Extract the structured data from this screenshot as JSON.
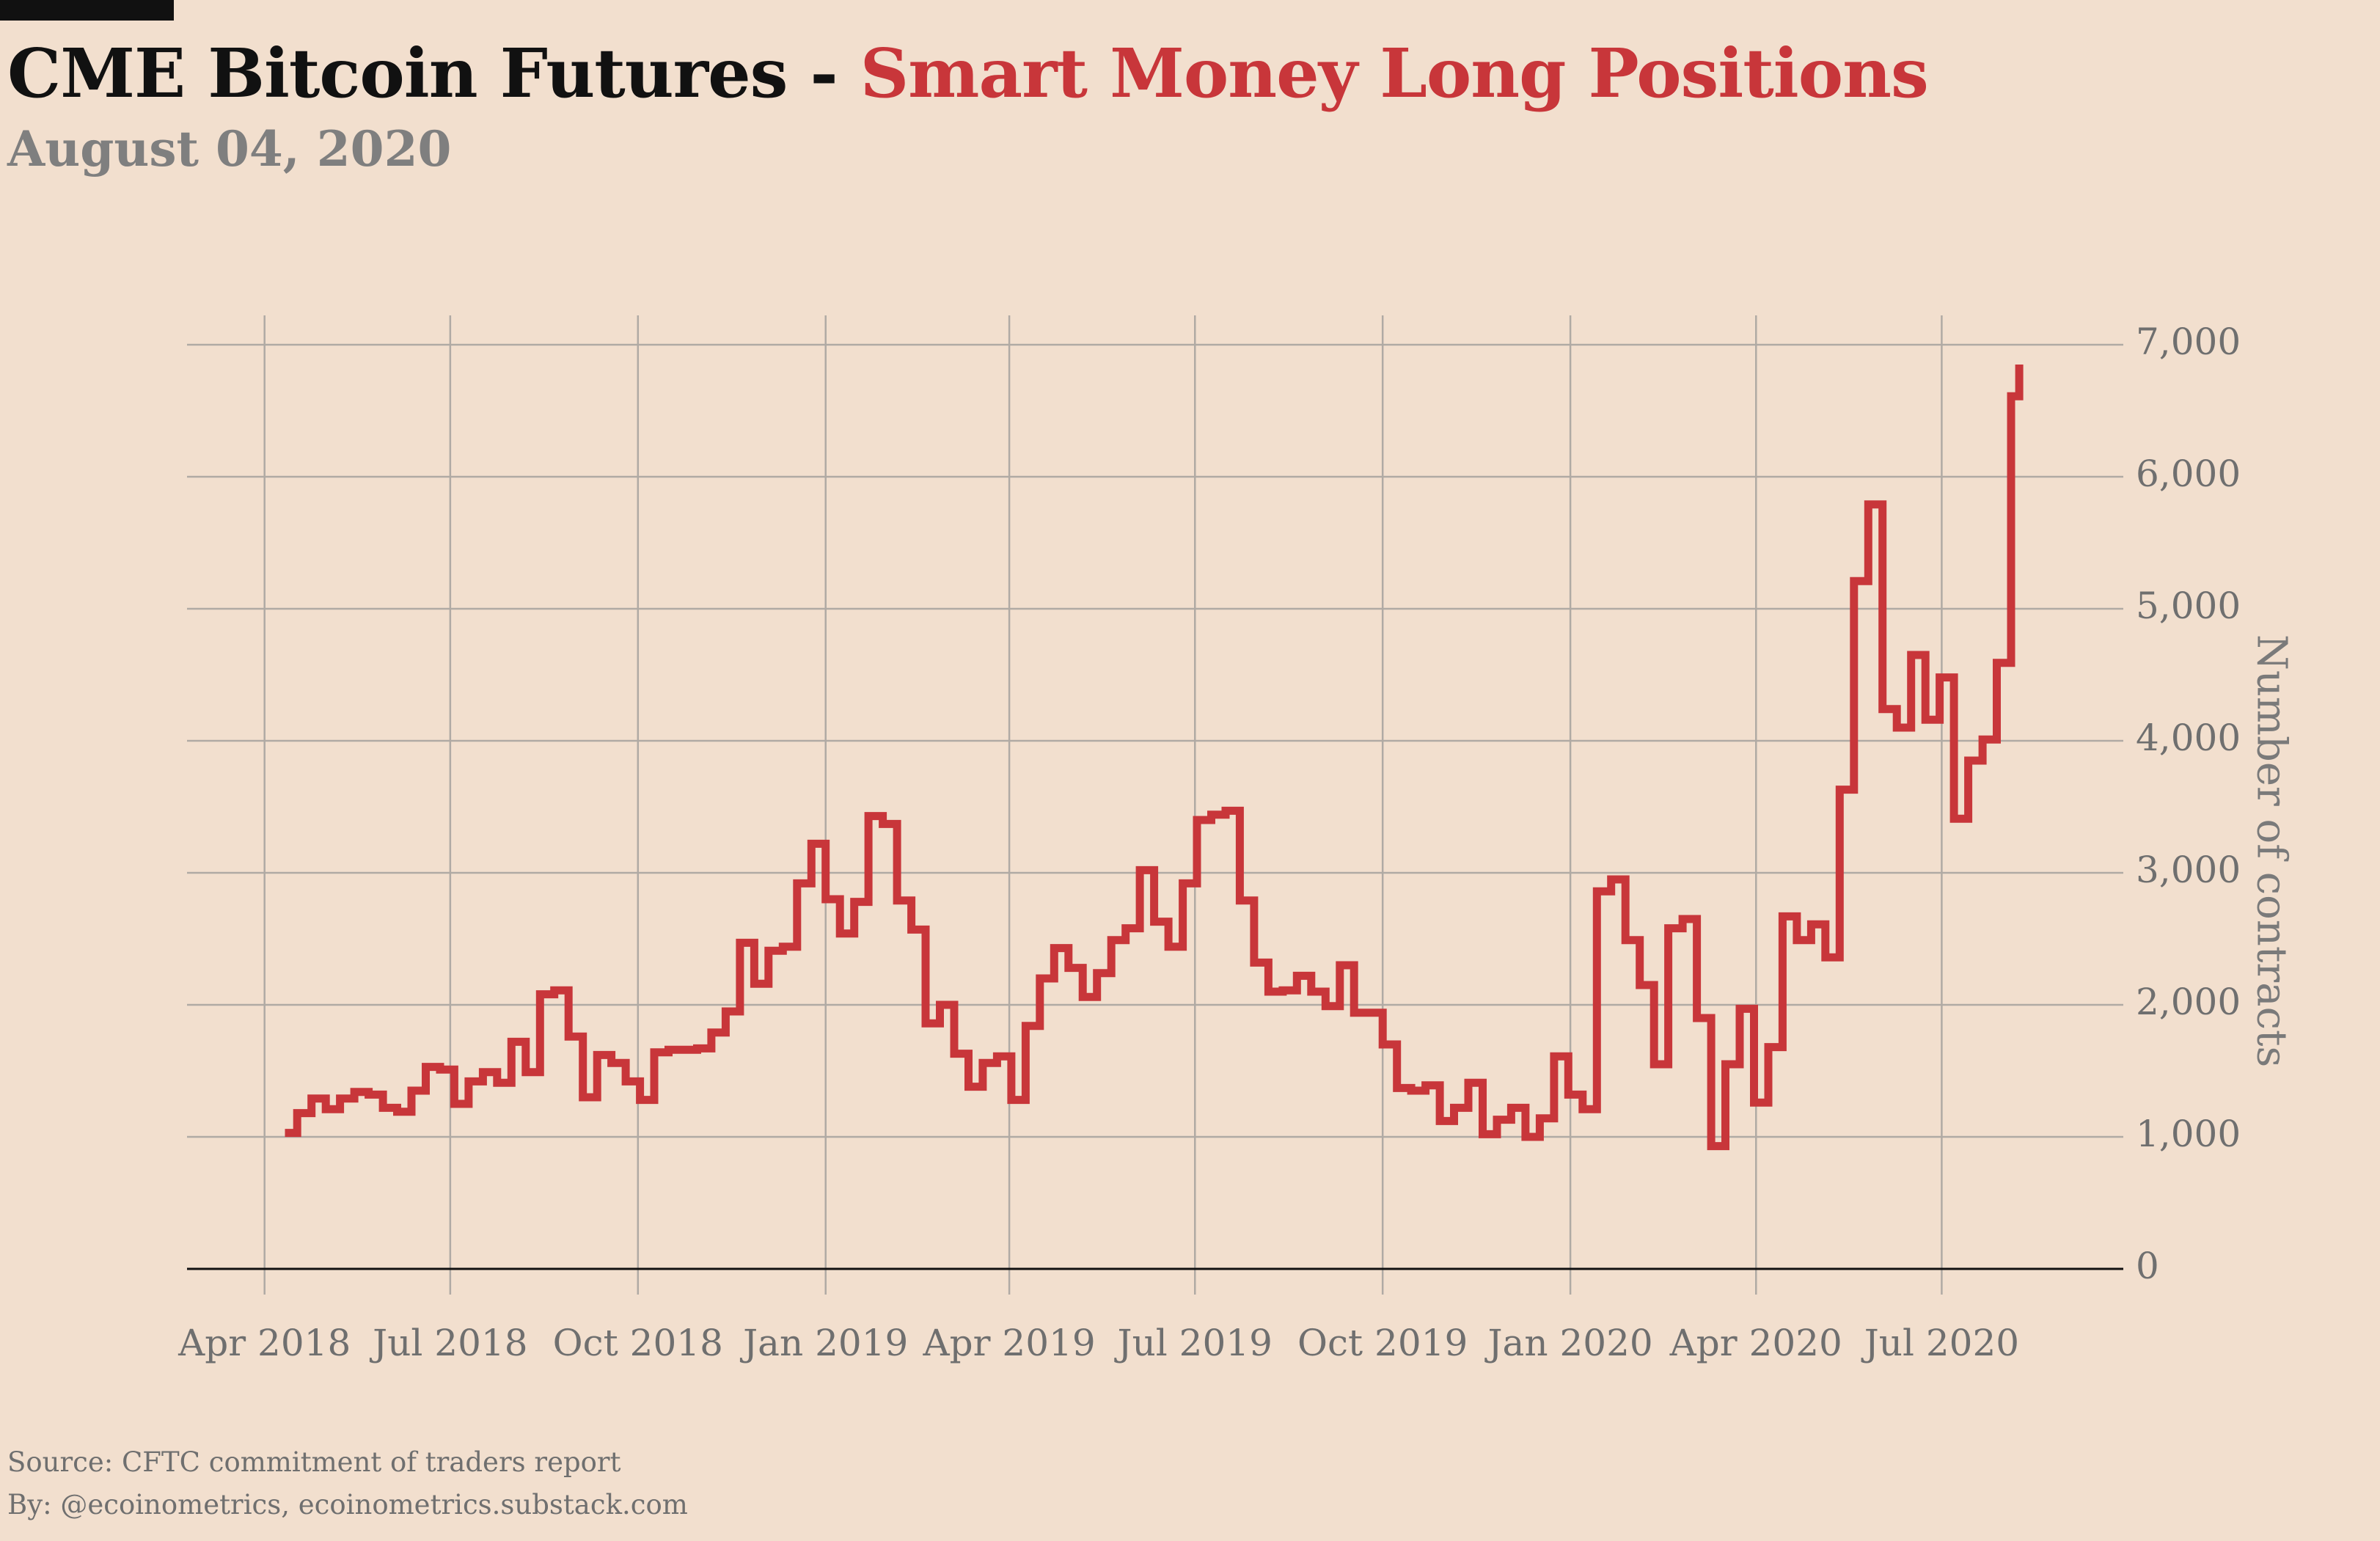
{
  "title": {
    "part1": "CME Bitcoin Futures - ",
    "part2": "Smart Money Long Positions"
  },
  "subtitle": "August 04, 2020",
  "footer": {
    "source": "Source: CFTC commitment of traders report",
    "by": "By: @ecoinometrics, ecoinometrics.substack.com"
  },
  "colors": {
    "background": "#f2dfce",
    "line": "#c8363a",
    "grid": "#b0aaa4",
    "zero_line": "#111111",
    "muted_text": "#7f7f7f"
  },
  "chart_data": {
    "type": "line",
    "step": true,
    "title": "CME Bitcoin Futures - Smart Money Long Positions",
    "subtitle": "August 04, 2020",
    "xlabel": "",
    "ylabel": "Number of contracts",
    "y_axis_side": "right",
    "ylim": [
      0,
      7000
    ],
    "xlim": [
      "2018-02-22",
      "2020-09-28"
    ],
    "grid": true,
    "legend": "none",
    "x_ticks": [
      {
        "date": "2018-04-01",
        "label": "Apr 2018"
      },
      {
        "date": "2018-07-01",
        "label": "Jul 2018"
      },
      {
        "date": "2018-10-01",
        "label": "Oct 2018"
      },
      {
        "date": "2019-01-01",
        "label": "Jan 2019"
      },
      {
        "date": "2019-04-01",
        "label": "Apr 2019"
      },
      {
        "date": "2019-07-01",
        "label": "Jul 2019"
      },
      {
        "date": "2019-10-01",
        "label": "Oct 2019"
      },
      {
        "date": "2020-01-01",
        "label": "Jan 2020"
      },
      {
        "date": "2020-04-01",
        "label": "Apr 2020"
      },
      {
        "date": "2020-07-01",
        "label": "Jul 2020"
      }
    ],
    "y_ticks": [
      {
        "value": 0,
        "label": "0"
      },
      {
        "value": 1000,
        "label": "1,000"
      },
      {
        "value": 2000,
        "label": "2,000"
      },
      {
        "value": 3000,
        "label": "3,000"
      },
      {
        "value": 4000,
        "label": "4,000"
      },
      {
        "value": 5000,
        "label": "5,000"
      },
      {
        "value": 6000,
        "label": "6,000"
      },
      {
        "value": 7000,
        "label": "7,000"
      }
    ],
    "series": [
      {
        "color": "#c8363a",
        "points": [
          [
            "2018-04-11",
            1030
          ],
          [
            "2018-04-17",
            1180
          ],
          [
            "2018-04-24",
            1290
          ],
          [
            "2018-05-01",
            1210
          ],
          [
            "2018-05-08",
            1290
          ],
          [
            "2018-05-15",
            1340
          ],
          [
            "2018-05-22",
            1320
          ],
          [
            "2018-05-29",
            1220
          ],
          [
            "2018-06-05",
            1190
          ],
          [
            "2018-06-12",
            1350
          ],
          [
            "2018-06-19",
            1530
          ],
          [
            "2018-06-26",
            1510
          ],
          [
            "2018-07-03",
            1250
          ],
          [
            "2018-07-10",
            1420
          ],
          [
            "2018-07-17",
            1490
          ],
          [
            "2018-07-24",
            1410
          ],
          [
            "2018-07-31",
            1720
          ],
          [
            "2018-08-07",
            1490
          ],
          [
            "2018-08-14",
            2080
          ],
          [
            "2018-08-21",
            2110
          ],
          [
            "2018-08-28",
            1760
          ],
          [
            "2018-09-04",
            1300
          ],
          [
            "2018-09-11",
            1620
          ],
          [
            "2018-09-18",
            1560
          ],
          [
            "2018-09-25",
            1420
          ],
          [
            "2018-10-02",
            1280
          ],
          [
            "2018-10-09",
            1640
          ],
          [
            "2018-10-16",
            1660
          ],
          [
            "2018-10-23",
            1660
          ],
          [
            "2018-10-30",
            1670
          ],
          [
            "2018-11-06",
            1790
          ],
          [
            "2018-11-13",
            1950
          ],
          [
            "2018-11-20",
            2470
          ],
          [
            "2018-11-27",
            2160
          ],
          [
            "2018-12-04",
            2410
          ],
          [
            "2018-12-11",
            2440
          ],
          [
            "2018-12-18",
            2920
          ],
          [
            "2018-12-25",
            3220
          ],
          [
            "2019-01-01",
            2800
          ],
          [
            "2019-01-08",
            2540
          ],
          [
            "2019-01-15",
            2780
          ],
          [
            "2019-01-22",
            3430
          ],
          [
            "2019-01-29",
            3370
          ],
          [
            "2019-02-05",
            2790
          ],
          [
            "2019-02-12",
            2570
          ],
          [
            "2019-02-19",
            1860
          ],
          [
            "2019-02-26",
            2000
          ],
          [
            "2019-03-05",
            1630
          ],
          [
            "2019-03-12",
            1380
          ],
          [
            "2019-03-19",
            1560
          ],
          [
            "2019-03-26",
            1610
          ],
          [
            "2019-04-02",
            1280
          ],
          [
            "2019-04-09",
            1840
          ],
          [
            "2019-04-16",
            2200
          ],
          [
            "2019-04-23",
            2430
          ],
          [
            "2019-04-30",
            2280
          ],
          [
            "2019-05-07",
            2060
          ],
          [
            "2019-05-14",
            2240
          ],
          [
            "2019-05-21",
            2490
          ],
          [
            "2019-05-28",
            2580
          ],
          [
            "2019-06-04",
            3020
          ],
          [
            "2019-06-11",
            2630
          ],
          [
            "2019-06-18",
            2440
          ],
          [
            "2019-06-25",
            2920
          ],
          [
            "2019-07-02",
            3400
          ],
          [
            "2019-07-09",
            3440
          ],
          [
            "2019-07-16",
            3470
          ],
          [
            "2019-07-23",
            2790
          ],
          [
            "2019-07-30",
            2320
          ],
          [
            "2019-08-06",
            2100
          ],
          [
            "2019-08-13",
            2110
          ],
          [
            "2019-08-20",
            2220
          ],
          [
            "2019-08-27",
            2100
          ],
          [
            "2019-09-03",
            1990
          ],
          [
            "2019-09-10",
            2300
          ],
          [
            "2019-09-17",
            1940
          ],
          [
            "2019-09-24",
            1940
          ],
          [
            "2019-10-01",
            1700
          ],
          [
            "2019-10-08",
            1370
          ],
          [
            "2019-10-15",
            1350
          ],
          [
            "2019-10-22",
            1390
          ],
          [
            "2019-10-29",
            1120
          ],
          [
            "2019-11-05",
            1220
          ],
          [
            "2019-11-12",
            1410
          ],
          [
            "2019-11-19",
            1020
          ],
          [
            "2019-11-26",
            1130
          ],
          [
            "2019-12-03",
            1220
          ],
          [
            "2019-12-10",
            1000
          ],
          [
            "2019-12-17",
            1140
          ],
          [
            "2019-12-24",
            1610
          ],
          [
            "2019-12-31",
            1320
          ],
          [
            "2020-01-07",
            1210
          ],
          [
            "2020-01-14",
            2860
          ],
          [
            "2020-01-21",
            2950
          ],
          [
            "2020-01-28",
            2490
          ],
          [
            "2020-02-04",
            2150
          ],
          [
            "2020-02-11",
            1550
          ],
          [
            "2020-02-18",
            2580
          ],
          [
            "2020-02-25",
            2650
          ],
          [
            "2020-03-03",
            1900
          ],
          [
            "2020-03-10",
            930
          ],
          [
            "2020-03-17",
            1550
          ],
          [
            "2020-03-24",
            1970
          ],
          [
            "2020-03-31",
            1260
          ],
          [
            "2020-04-07",
            1680
          ],
          [
            "2020-04-14",
            2670
          ],
          [
            "2020-04-21",
            2490
          ],
          [
            "2020-04-28",
            2610
          ],
          [
            "2020-05-05",
            2360
          ],
          [
            "2020-05-12",
            3630
          ],
          [
            "2020-05-19",
            5210
          ],
          [
            "2020-05-26",
            5790
          ],
          [
            "2020-06-02",
            4240
          ],
          [
            "2020-06-09",
            4100
          ],
          [
            "2020-06-16",
            4650
          ],
          [
            "2020-06-23",
            4160
          ],
          [
            "2020-06-30",
            4480
          ],
          [
            "2020-07-07",
            3410
          ],
          [
            "2020-07-14",
            3850
          ],
          [
            "2020-07-21",
            4010
          ],
          [
            "2020-07-28",
            4590
          ],
          [
            "2020-08-04",
            6610
          ],
          [
            "2020-08-08",
            6850
          ]
        ]
      }
    ]
  }
}
